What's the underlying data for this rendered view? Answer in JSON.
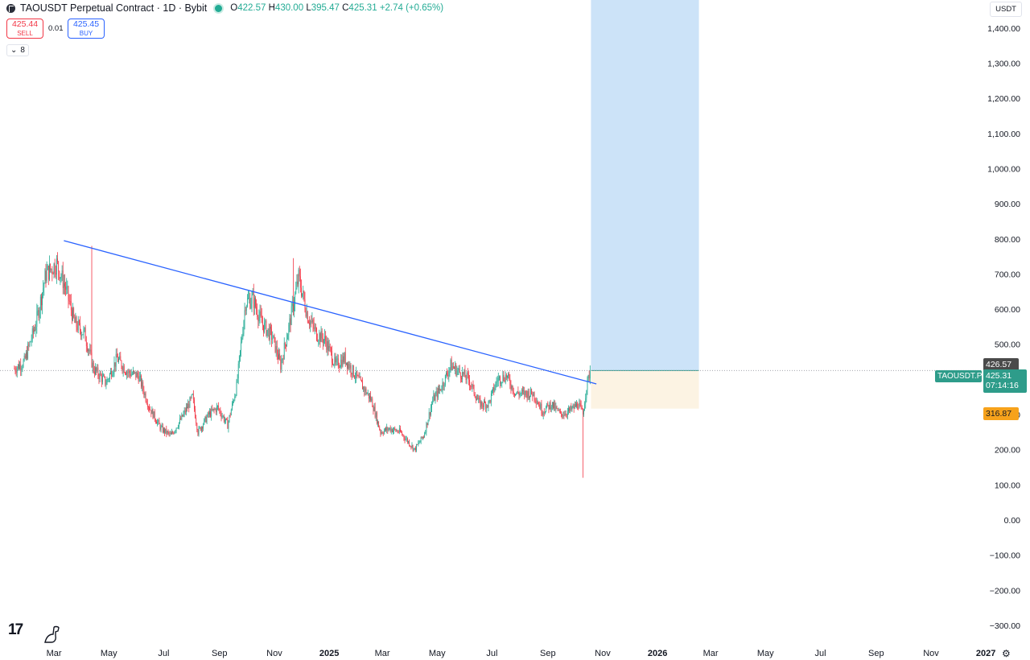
{
  "header": {
    "title": "TAOUSDT Perpetual Contract · 1D · Bybit",
    "open_label": "O",
    "open": "422.57",
    "high_label": "H",
    "high": "430.00",
    "low_label": "L",
    "low": "395.47",
    "close_label": "C",
    "close": "425.31",
    "change": "+2.74 (+0.65%)"
  },
  "trade_panel": {
    "sell_price": "425.44",
    "sell_label": "SELL",
    "spread": "0.01",
    "buy_price": "425.45",
    "buy_label": "BUY"
  },
  "indicators_toggle": {
    "icon": "chevron-down-icon",
    "count": "8"
  },
  "currency": "USDT",
  "price_labels": {
    "upper_line": "426.57",
    "current_symbol": "TAOUSDT.P",
    "current_price": "425.31",
    "countdown": "07:14:16",
    "stop": "316.87"
  },
  "colors": {
    "up": "#22ab94",
    "down": "#f23645",
    "trendline": "#2962ff",
    "target_zone": "#cce3f8",
    "stop_zone": "#fcf3e3",
    "stop_label": "#f7a21b",
    "current_price_label": "#2e9c8a",
    "upper_line_label": "#4a4a4a"
  },
  "icons": [
    "tradingview-logo-icon",
    "dinosaur-icon",
    "settings-icon"
  ],
  "chart_data": {
    "type": "candlestick",
    "timeframe": "1D",
    "y_axis": {
      "range": [
        -330,
        1480
      ],
      "ticks": [
        -300,
        -200,
        -100,
        0,
        100,
        200,
        300,
        400,
        500,
        600,
        700,
        800,
        900,
        1000,
        1100,
        1200,
        1300,
        1400
      ],
      "tick_labels": [
        "−300.00",
        "−200.00",
        "−100.00",
        "0.00",
        "100.00",
        "200.00",
        "300.00",
        "400.00",
        "500.00",
        "600.00",
        "700.00",
        "800.00",
        "900.00",
        "1,000.00",
        "1,100.00",
        "1,200.00",
        "1,300.00",
        "1,400.00"
      ]
    },
    "x_axis": {
      "range": [
        "2024-01-01",
        "2027-01-25"
      ],
      "ticks": [
        "2024-03-01",
        "2024-05-01",
        "2024-07-01",
        "2024-09-01",
        "2024-11-01",
        "2025-01-01",
        "2025-03-01",
        "2025-05-01",
        "2025-07-01",
        "2025-09-01",
        "2025-11-01",
        "2026-01-01",
        "2026-03-01",
        "2026-05-01",
        "2026-07-01",
        "2026-09-01",
        "2026-11-01",
        "2027-01-01"
      ],
      "tick_labels": [
        "Mar",
        "May",
        "Jul",
        "Sep",
        "Nov",
        "2025",
        "Mar",
        "May",
        "Jul",
        "Sep",
        "Nov",
        "2026",
        "Mar",
        "May",
        "Jul",
        "Sep",
        "Nov",
        "2027"
      ]
    },
    "price_path": [
      [
        "2024-01-17",
        430
      ],
      [
        "2024-01-28",
        450
      ],
      [
        "2024-02-10",
        560
      ],
      [
        "2024-02-21",
        700
      ],
      [
        "2024-03-04",
        730
      ],
      [
        "2024-03-14",
        660
      ],
      [
        "2024-03-24",
        560
      ],
      [
        "2024-04-04",
        530
      ],
      [
        "2024-04-14",
        430
      ],
      [
        "2024-04-28",
        390
      ],
      [
        "2024-05-10",
        460
      ],
      [
        "2024-05-22",
        420
      ],
      [
        "2024-06-03",
        410
      ],
      [
        "2024-06-15",
        320
      ],
      [
        "2024-06-28",
        260
      ],
      [
        "2024-07-09",
        240
      ],
      [
        "2024-07-21",
        290
      ],
      [
        "2024-08-02",
        350
      ],
      [
        "2024-08-08",
        250
      ],
      [
        "2024-08-20",
        300
      ],
      [
        "2024-08-30",
        320
      ],
      [
        "2024-09-10",
        270
      ],
      [
        "2024-09-20",
        380
      ],
      [
        "2024-09-30",
        620
      ],
      [
        "2024-10-08",
        630
      ],
      [
        "2024-10-18",
        560
      ],
      [
        "2024-10-30",
        520
      ],
      [
        "2024-11-08",
        440
      ],
      [
        "2024-11-18",
        560
      ],
      [
        "2024-11-28",
        690
      ],
      [
        "2024-12-08",
        580
      ],
      [
        "2024-12-18",
        530
      ],
      [
        "2024-12-28",
        510
      ],
      [
        "2025-01-08",
        440
      ],
      [
        "2025-01-18",
        460
      ],
      [
        "2025-01-28",
        420
      ],
      [
        "2025-02-07",
        380
      ],
      [
        "2025-02-17",
        340
      ],
      [
        "2025-02-27",
        250
      ],
      [
        "2025-03-09",
        260
      ],
      [
        "2025-03-21",
        250
      ],
      [
        "2025-04-06",
        200
      ],
      [
        "2025-04-16",
        240
      ],
      [
        "2025-04-26",
        340
      ],
      [
        "2025-05-06",
        380
      ],
      [
        "2025-05-16",
        440
      ],
      [
        "2025-05-26",
        420
      ],
      [
        "2025-06-05",
        400
      ],
      [
        "2025-06-17",
        330
      ],
      [
        "2025-06-27",
        330
      ],
      [
        "2025-07-07",
        400
      ],
      [
        "2025-07-17",
        410
      ],
      [
        "2025-07-27",
        360
      ],
      [
        "2025-08-06",
        360
      ],
      [
        "2025-08-16",
        360
      ],
      [
        "2025-08-26",
        310
      ],
      [
        "2025-09-05",
        330
      ],
      [
        "2025-09-15",
        300
      ],
      [
        "2025-09-25",
        310
      ],
      [
        "2025-10-05",
        330
      ],
      [
        "2025-10-10",
        300
      ],
      [
        "2025-10-14",
        380
      ],
      [
        "2025-10-18",
        425.31
      ]
    ],
    "wicks": [
      {
        "date": "2024-04-12",
        "high": 780
      },
      {
        "date": "2024-11-22",
        "high": 745
      },
      {
        "date": "2025-10-10",
        "low": 120
      }
    ],
    "trendline": {
      "start": [
        "2024-03-12",
        795
      ],
      "end": [
        "2025-10-25",
        387
      ]
    },
    "long_position": {
      "start": "2025-10-19",
      "end": "2026-02-16",
      "entry": 425.31,
      "stop": 316.87,
      "target_zone": [
        425.31,
        1480
      ]
    },
    "horizontal_lines": [
      {
        "type": "dotted",
        "value": 425.31
      }
    ],
    "axis_labels": [
      426.57,
      425.31,
      316.87
    ]
  }
}
